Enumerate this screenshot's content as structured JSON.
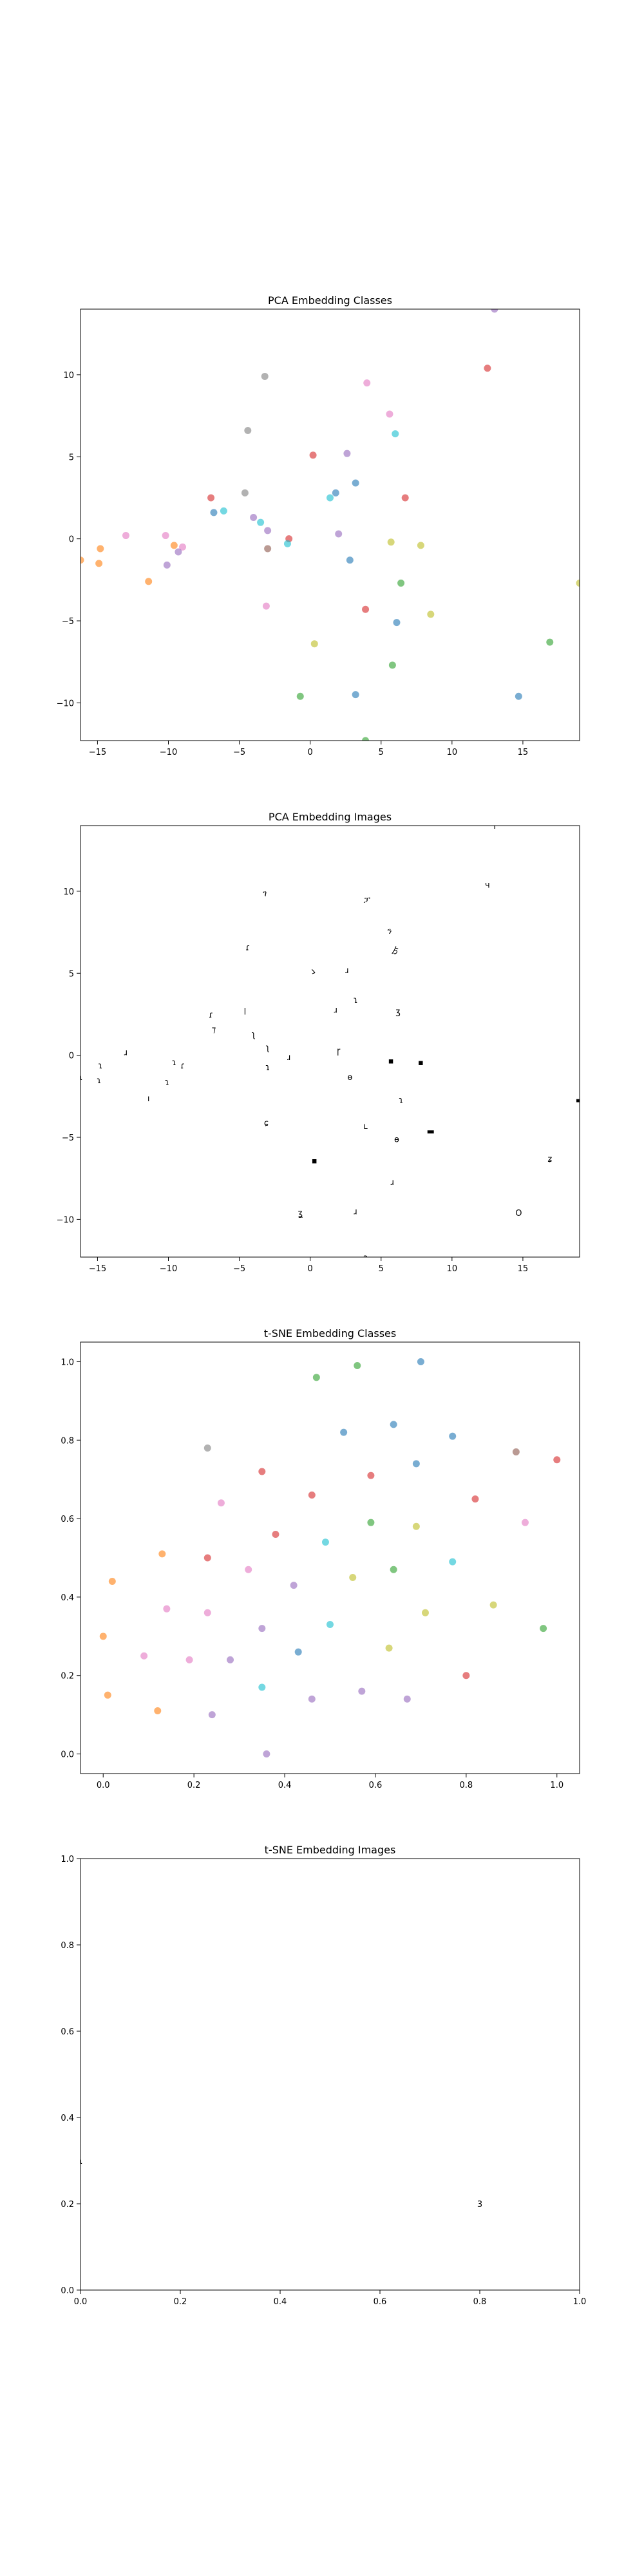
{
  "palette": [
    "#1f77b4",
    "#ff7f0e",
    "#2ca02c",
    "#d62728",
    "#9467bd",
    "#8c564b",
    "#e377c2",
    "#7f7f7f",
    "#bcbd22",
    "#17becf"
  ],
  "chart_data": [
    {
      "type": "scatter",
      "title": "PCA Embedding Classes",
      "xlim": [
        -16.2,
        19
      ],
      "ylim": [
        -12.3,
        14
      ],
      "xticks": [
        -15,
        -10,
        -5,
        0,
        5,
        10,
        15
      ],
      "yticks": [
        -10,
        -5,
        0,
        5,
        10
      ],
      "points": [
        {
          "x": 12.5,
          "y": 10.4,
          "c": 3
        },
        {
          "x": 4.0,
          "y": 9.5,
          "c": 6
        },
        {
          "x": -3.2,
          "y": 9.9,
          "c": 7
        },
        {
          "x": 5.6,
          "y": 7.6,
          "c": 6
        },
        {
          "x": -4.4,
          "y": 6.6,
          "c": 7
        },
        {
          "x": 6.0,
          "y": 6.4,
          "c": 9
        },
        {
          "x": 0.2,
          "y": 5.1,
          "c": 3
        },
        {
          "x": 2.6,
          "y": 5.2,
          "c": 4
        },
        {
          "x": 3.2,
          "y": 3.4,
          "c": 0
        },
        {
          "x": -7.0,
          "y": 2.5,
          "c": 3
        },
        {
          "x": -4.6,
          "y": 2.8,
          "c": 7
        },
        {
          "x": 1.8,
          "y": 2.8,
          "c": 0
        },
        {
          "x": 1.4,
          "y": 2.5,
          "c": 9
        },
        {
          "x": 6.7,
          "y": 2.5,
          "c": 3
        },
        {
          "x": -6.8,
          "y": 1.6,
          "c": 0
        },
        {
          "x": -6.1,
          "y": 1.7,
          "c": 9
        },
        {
          "x": -4.0,
          "y": 1.3,
          "c": 4
        },
        {
          "x": -3.5,
          "y": 1.0,
          "c": 9
        },
        {
          "x": -3.0,
          "y": 0.5,
          "c": 4
        },
        {
          "x": -13.0,
          "y": 0.2,
          "c": 6
        },
        {
          "x": -10.2,
          "y": 0.2,
          "c": 6
        },
        {
          "x": 2.0,
          "y": 0.3,
          "c": 4
        },
        {
          "x": -1.5,
          "y": 0.0,
          "c": 3
        },
        {
          "x": -1.6,
          "y": -0.3,
          "c": 9
        },
        {
          "x": -9.6,
          "y": -0.4,
          "c": 1
        },
        {
          "x": -9.0,
          "y": -0.5,
          "c": 6
        },
        {
          "x": -9.3,
          "y": -0.8,
          "c": 4
        },
        {
          "x": -3.0,
          "y": -0.6,
          "c": 5
        },
        {
          "x": 5.7,
          "y": -0.2,
          "c": 8
        },
        {
          "x": 7.8,
          "y": -0.4,
          "c": 8
        },
        {
          "x": -14.8,
          "y": -0.6,
          "c": 1
        },
        {
          "x": -16.2,
          "y": -1.3,
          "c": 1
        },
        {
          "x": -14.9,
          "y": -1.5,
          "c": 1
        },
        {
          "x": 2.8,
          "y": -1.3,
          "c": 0
        },
        {
          "x": -10.1,
          "y": -1.6,
          "c": 4
        },
        {
          "x": -11.4,
          "y": -2.6,
          "c": 1
        },
        {
          "x": 6.4,
          "y": -2.7,
          "c": 2
        },
        {
          "x": 19.0,
          "y": -2.7,
          "c": 8
        },
        {
          "x": -3.1,
          "y": -4.1,
          "c": 6
        },
        {
          "x": 3.9,
          "y": -4.3,
          "c": 3
        },
        {
          "x": 8.5,
          "y": -4.6,
          "c": 8
        },
        {
          "x": 6.1,
          "y": -5.1,
          "c": 0
        },
        {
          "x": 0.3,
          "y": -6.4,
          "c": 8
        },
        {
          "x": 16.9,
          "y": -6.3,
          "c": 2
        },
        {
          "x": 5.8,
          "y": -7.7,
          "c": 2
        },
        {
          "x": -0.7,
          "y": -9.6,
          "c": 2
        },
        {
          "x": 3.2,
          "y": -9.5,
          "c": 0
        },
        {
          "x": 14.7,
          "y": -9.6,
          "c": 0
        },
        {
          "x": 3.9,
          "y": -12.3,
          "c": 2
        },
        {
          "x": 13.0,
          "y": 14.0,
          "c": 4
        }
      ]
    },
    {
      "type": "scatter",
      "title": "PCA Embedding Images",
      "xlim": [
        -16.2,
        19
      ],
      "ylim": [
        -12.3,
        14
      ],
      "xticks": [
        -15,
        -10,
        -5,
        0,
        5,
        10,
        15
      ],
      "yticks": [
        -10,
        -5,
        0,
        5,
        10
      ],
      "glyphs": [
        {
          "x": 12.5,
          "y": 10.4,
          "t": "ч"
        },
        {
          "x": 4.0,
          "y": 9.5,
          "t": "ፓ"
        },
        {
          "x": -3.2,
          "y": 9.9,
          "t": "ገ"
        },
        {
          "x": 5.6,
          "y": 7.6,
          "t": "ን"
        },
        {
          "x": -4.4,
          "y": 6.6,
          "t": "ɾ"
        },
        {
          "x": 6.0,
          "y": 6.4,
          "t": "ゟ"
        },
        {
          "x": 0.2,
          "y": 5.1,
          "t": "ゝ"
        },
        {
          "x": 2.6,
          "y": 5.2,
          "t": "ɹ"
        },
        {
          "x": 3.2,
          "y": 3.4,
          "t": "ɿ"
        },
        {
          "x": 6.2,
          "y": 2.7,
          "t": "ʒ"
        },
        {
          "x": -7.0,
          "y": 2.5,
          "t": "ɾ"
        },
        {
          "x": -4.6,
          "y": 2.8,
          "t": "ꞁ"
        },
        {
          "x": 1.8,
          "y": 2.8,
          "t": "ɹ"
        },
        {
          "x": -6.8,
          "y": 1.6,
          "t": "⁊"
        },
        {
          "x": -4.0,
          "y": 1.3,
          "t": "ʅ"
        },
        {
          "x": -3.0,
          "y": 0.5,
          "t": "ʅ"
        },
        {
          "x": -13.0,
          "y": 0.2,
          "t": "ɹ"
        },
        {
          "x": 2.0,
          "y": 0.3,
          "t": "ɼ"
        },
        {
          "x": -1.5,
          "y": -0.1,
          "t": "ɹ"
        },
        {
          "x": 5.7,
          "y": -0.3,
          "t": "▪"
        },
        {
          "x": 7.8,
          "y": -0.4,
          "t": "▪"
        },
        {
          "x": -9.6,
          "y": -0.4,
          "t": "ɿ"
        },
        {
          "x": -9.0,
          "y": -0.6,
          "t": "ɾ"
        },
        {
          "x": -3.0,
          "y": -0.7,
          "t": "ɿ"
        },
        {
          "x": -14.8,
          "y": -0.6,
          "t": "ɿ"
        },
        {
          "x": -16.2,
          "y": -1.3,
          "t": "ɿ"
        },
        {
          "x": -14.9,
          "y": -1.5,
          "t": "ɿ"
        },
        {
          "x": -10.1,
          "y": -1.6,
          "t": "ɿ"
        },
        {
          "x": 2.8,
          "y": -1.3,
          "t": "ɵ"
        },
        {
          "x": -11.4,
          "y": -2.6,
          "t": "ı"
        },
        {
          "x": 6.4,
          "y": -2.7,
          "t": "ɿ"
        },
        {
          "x": 19.0,
          "y": -2.7,
          "t": "▬"
        },
        {
          "x": -3.1,
          "y": -4.1,
          "t": "ɕ"
        },
        {
          "x": 3.9,
          "y": -4.3,
          "t": "ʟ"
        },
        {
          "x": 8.5,
          "y": -4.6,
          "t": "▬"
        },
        {
          "x": 6.1,
          "y": -5.1,
          "t": "ɵ"
        },
        {
          "x": 0.3,
          "y": -6.4,
          "t": "▪"
        },
        {
          "x": 16.9,
          "y": -6.3,
          "t": "ʑ"
        },
        {
          "x": 5.8,
          "y": -7.7,
          "t": "ɹ"
        },
        {
          "x": -0.7,
          "y": -9.6,
          "t": "ʓ"
        },
        {
          "x": 3.2,
          "y": -9.5,
          "t": "ɹ"
        },
        {
          "x": 14.7,
          "y": -9.6,
          "t": "Ο"
        },
        {
          "x": 3.9,
          "y": -12.3,
          "t": "ɂ"
        },
        {
          "x": 13.0,
          "y": 14.0,
          "t": "ʕ"
        }
      ]
    },
    {
      "type": "scatter",
      "title": "t-SNE Embedding Classes",
      "xlim": [
        -0.05,
        1.05
      ],
      "ylim": [
        -0.05,
        1.05
      ],
      "xticks": [
        0.0,
        0.2,
        0.4,
        0.6,
        0.8,
        1.0
      ],
      "yticks": [
        0.0,
        0.2,
        0.4,
        0.6,
        0.8,
        1.0
      ],
      "points": [
        {
          "x": 0.47,
          "y": 0.96,
          "c": 2
        },
        {
          "x": 0.56,
          "y": 0.99,
          "c": 2
        },
        {
          "x": 0.7,
          "y": 1.0,
          "c": 0
        },
        {
          "x": 0.53,
          "y": 0.82,
          "c": 0
        },
        {
          "x": 0.64,
          "y": 0.84,
          "c": 0
        },
        {
          "x": 0.77,
          "y": 0.81,
          "c": 0
        },
        {
          "x": 0.23,
          "y": 0.78,
          "c": 7
        },
        {
          "x": 0.69,
          "y": 0.74,
          "c": 0
        },
        {
          "x": 0.91,
          "y": 0.77,
          "c": 5
        },
        {
          "x": 1.0,
          "y": 0.75,
          "c": 3
        },
        {
          "x": 0.35,
          "y": 0.72,
          "c": 3
        },
        {
          "x": 0.59,
          "y": 0.71,
          "c": 3
        },
        {
          "x": 0.26,
          "y": 0.64,
          "c": 6
        },
        {
          "x": 0.46,
          "y": 0.66,
          "c": 3
        },
        {
          "x": 0.82,
          "y": 0.65,
          "c": 3
        },
        {
          "x": 0.59,
          "y": 0.59,
          "c": 2
        },
        {
          "x": 0.69,
          "y": 0.58,
          "c": 8
        },
        {
          "x": 0.93,
          "y": 0.59,
          "c": 6
        },
        {
          "x": 0.38,
          "y": 0.56,
          "c": 3
        },
        {
          "x": 0.49,
          "y": 0.54,
          "c": 9
        },
        {
          "x": 0.13,
          "y": 0.51,
          "c": 1
        },
        {
          "x": 0.23,
          "y": 0.5,
          "c": 3
        },
        {
          "x": 0.77,
          "y": 0.49,
          "c": 9
        },
        {
          "x": 0.32,
          "y": 0.47,
          "c": 6
        },
        {
          "x": 0.64,
          "y": 0.47,
          "c": 2
        },
        {
          "x": 0.02,
          "y": 0.44,
          "c": 1
        },
        {
          "x": 0.55,
          "y": 0.45,
          "c": 8
        },
        {
          "x": 0.42,
          "y": 0.43,
          "c": 4
        },
        {
          "x": 0.14,
          "y": 0.37,
          "c": 6
        },
        {
          "x": 0.23,
          "y": 0.36,
          "c": 6
        },
        {
          "x": 0.71,
          "y": 0.36,
          "c": 8
        },
        {
          "x": 0.86,
          "y": 0.38,
          "c": 8
        },
        {
          "x": 0.5,
          "y": 0.33,
          "c": 9
        },
        {
          "x": 0.35,
          "y": 0.32,
          "c": 4
        },
        {
          "x": 0.97,
          "y": 0.32,
          "c": 2
        },
        {
          "x": 0.0,
          "y": 0.3,
          "c": 1
        },
        {
          "x": 0.63,
          "y": 0.27,
          "c": 8
        },
        {
          "x": 0.09,
          "y": 0.25,
          "c": 6
        },
        {
          "x": 0.43,
          "y": 0.26,
          "c": 0
        },
        {
          "x": 0.19,
          "y": 0.24,
          "c": 6
        },
        {
          "x": 0.28,
          "y": 0.24,
          "c": 4
        },
        {
          "x": 0.8,
          "y": 0.2,
          "c": 3
        },
        {
          "x": 0.35,
          "y": 0.17,
          "c": 9
        },
        {
          "x": 0.57,
          "y": 0.16,
          "c": 4
        },
        {
          "x": 0.01,
          "y": 0.15,
          "c": 1
        },
        {
          "x": 0.46,
          "y": 0.14,
          "c": 4
        },
        {
          "x": 0.67,
          "y": 0.14,
          "c": 4
        },
        {
          "x": 0.12,
          "y": 0.11,
          "c": 1
        },
        {
          "x": 0.24,
          "y": 0.1,
          "c": 4
        },
        {
          "x": 0.36,
          "y": 0.0,
          "c": 4
        }
      ]
    },
    {
      "type": "scatter",
      "title": "t-SNE Embedding Images",
      "xlim": [
        0.0,
        1.0
      ],
      "ylim": [
        0.0,
        1.0
      ],
      "xticks": [
        0.0,
        0.2,
        0.4,
        0.6,
        0.8,
        1.0
      ],
      "yticks": [
        0.0,
        0.2,
        0.4,
        0.6,
        0.8,
        1.0
      ],
      "glyphs": [
        {
          "x": 0.8,
          "y": 0.2,
          "t": "3"
        },
        {
          "x": 0.0,
          "y": 0.3,
          "t": "ɿ"
        }
      ]
    }
  ]
}
